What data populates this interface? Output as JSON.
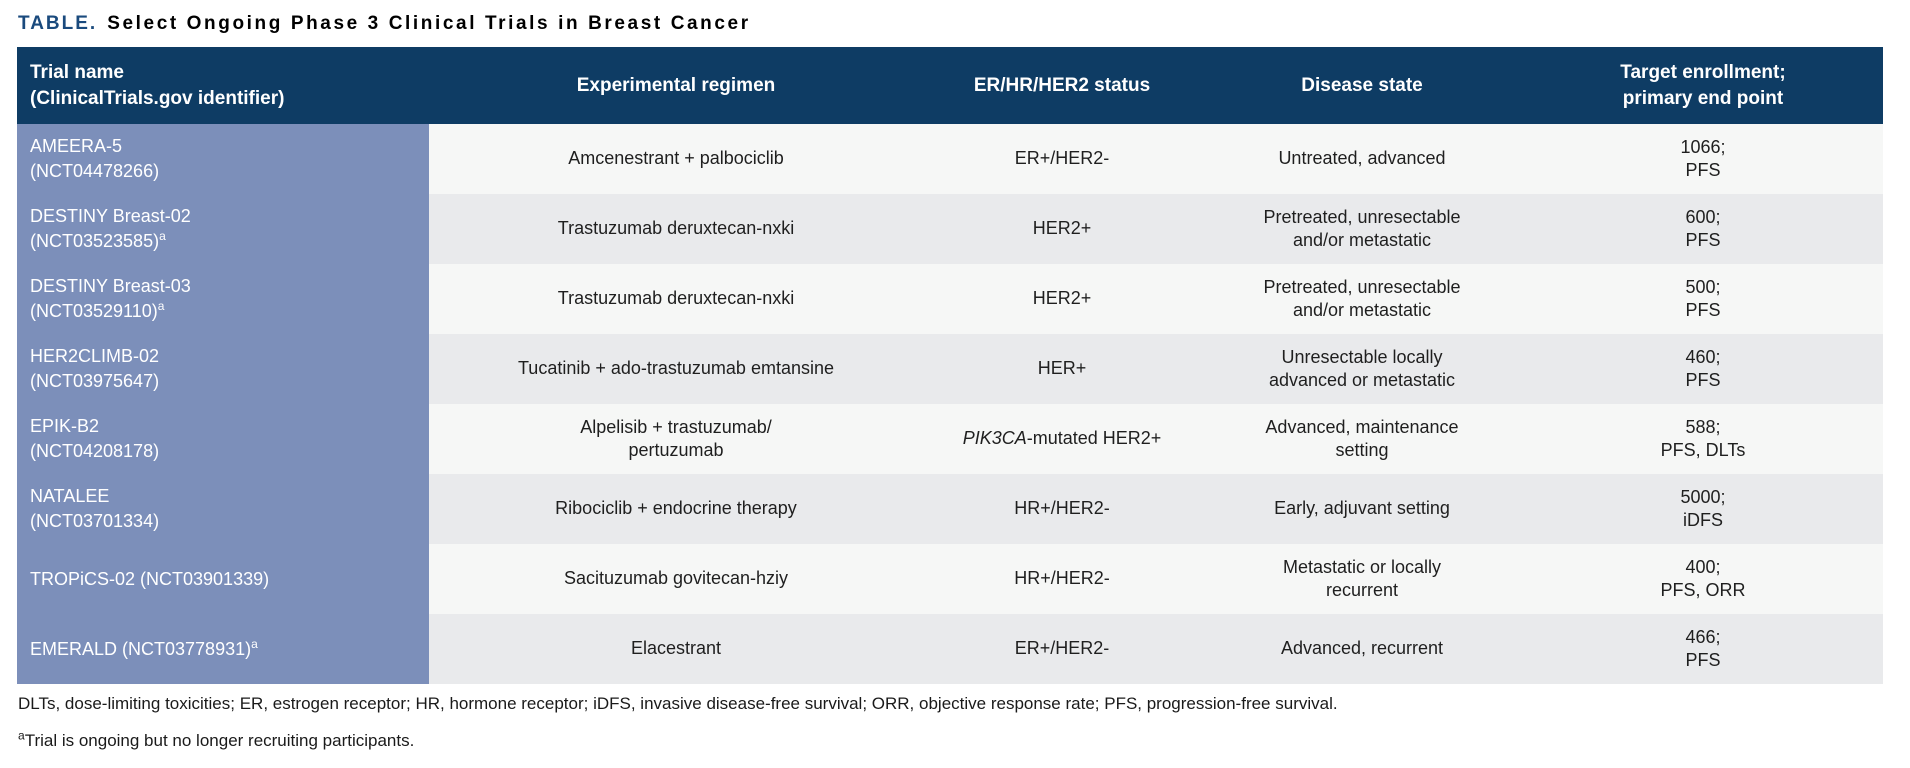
{
  "title": {
    "label": "TABLE.",
    "text": "Select Ongoing Phase 3 Clinical Trials in Breast Cancer"
  },
  "colors": {
    "header_bg": "#0e3c64",
    "trial_column_bg": "#7c8fba",
    "row_light": "#f6f7f6",
    "row_dark": "#e9eaec",
    "title_accent": "#1a4a7d"
  },
  "table": {
    "columns": [
      {
        "id": "trial",
        "align": "left",
        "header_lines": [
          "Trial name",
          "(ClinicalTrials.gov identifier)"
        ]
      },
      {
        "id": "regimen",
        "align": "center",
        "header_lines": [
          "Experimental regimen"
        ]
      },
      {
        "id": "status",
        "align": "center",
        "header_lines": [
          "ER/HR/HER2 status"
        ]
      },
      {
        "id": "disease",
        "align": "center",
        "header_lines": [
          "Disease state"
        ]
      },
      {
        "id": "enrollment",
        "align": "center",
        "header_lines": [
          "Target enrollment;",
          "primary end point"
        ]
      }
    ],
    "rows": [
      {
        "trial_lines": [
          "AMEERA-5",
          "(NCT04478266)"
        ],
        "trial_sup": "",
        "regimen_lines": [
          "Amcenestrant + palbociclib"
        ],
        "status": {
          "italic": "",
          "text": "ER+/HER2-"
        },
        "disease_lines": [
          "Untreated, advanced"
        ],
        "enrollment_lines": [
          "1066;",
          "PFS"
        ]
      },
      {
        "trial_lines": [
          "DESTINY Breast-02",
          "(NCT03523585)"
        ],
        "trial_sup": "a",
        "regimen_lines": [
          "Trastuzumab deruxtecan-nxki"
        ],
        "status": {
          "italic": "",
          "text": "HER2+"
        },
        "disease_lines": [
          "Pretreated, unresectable",
          "and/or metastatic"
        ],
        "enrollment_lines": [
          "600;",
          "PFS"
        ]
      },
      {
        "trial_lines": [
          "DESTINY Breast-03",
          "(NCT03529110)"
        ],
        "trial_sup": "a",
        "regimen_lines": [
          "Trastuzumab deruxtecan-nxki"
        ],
        "status": {
          "italic": "",
          "text": "HER2+"
        },
        "disease_lines": [
          "Pretreated, unresectable",
          "and/or metastatic"
        ],
        "enrollment_lines": [
          "500;",
          "PFS"
        ]
      },
      {
        "trial_lines": [
          "HER2CLIMB-02",
          "(NCT03975647)"
        ],
        "trial_sup": "",
        "regimen_lines": [
          "Tucatinib + ado-trastuzumab emtansine"
        ],
        "status": {
          "italic": "",
          "text": "HER+"
        },
        "disease_lines": [
          "Unresectable locally",
          "advanced or metastatic"
        ],
        "enrollment_lines": [
          "460;",
          "PFS"
        ]
      },
      {
        "trial_lines": [
          "EPIK-B2",
          "(NCT04208178)"
        ],
        "trial_sup": "",
        "regimen_lines": [
          "Alpelisib + trastuzumab/",
          "pertuzumab"
        ],
        "status": {
          "italic": "PIK3CA",
          "text": "-mutated HER2+"
        },
        "disease_lines": [
          "Advanced, maintenance",
          "setting"
        ],
        "enrollment_lines": [
          "588;",
          "PFS, DLTs"
        ]
      },
      {
        "trial_lines": [
          "NATALEE",
          "(NCT03701334)"
        ],
        "trial_sup": "",
        "regimen_lines": [
          "Ribociclib + endocrine therapy"
        ],
        "status": {
          "italic": "",
          "text": "HR+/HER2-"
        },
        "disease_lines": [
          "Early, adjuvant setting"
        ],
        "enrollment_lines": [
          "5000;",
          "iDFS"
        ]
      },
      {
        "trial_lines": [
          "TROPiCS-02 (NCT03901339)"
        ],
        "trial_sup": "",
        "regimen_lines": [
          "Sacituzumab govitecan-hziy"
        ],
        "status": {
          "italic": "",
          "text": "HR+/HER2-"
        },
        "disease_lines": [
          "Metastatic or locally",
          "recurrent"
        ],
        "enrollment_lines": [
          "400;",
          "PFS, ORR"
        ]
      },
      {
        "trial_lines": [
          "EMERALD (NCT03778931)"
        ],
        "trial_sup": "a",
        "regimen_lines": [
          "Elacestrant"
        ],
        "status": {
          "italic": "",
          "text": "ER+/HER2-"
        },
        "disease_lines": [
          "Advanced, recurrent"
        ],
        "enrollment_lines": [
          "466;",
          "PFS"
        ]
      }
    ]
  },
  "footnotes": {
    "abbreviations": "DLTs, dose-limiting toxicities; ER, estrogen receptor; HR, hormone receptor; iDFS, invasive disease-free survival; ORR, objective response rate; PFS, progression-free survival.",
    "note_sup": "a",
    "note_text": "Trial is ongoing but no longer recruiting participants."
  }
}
